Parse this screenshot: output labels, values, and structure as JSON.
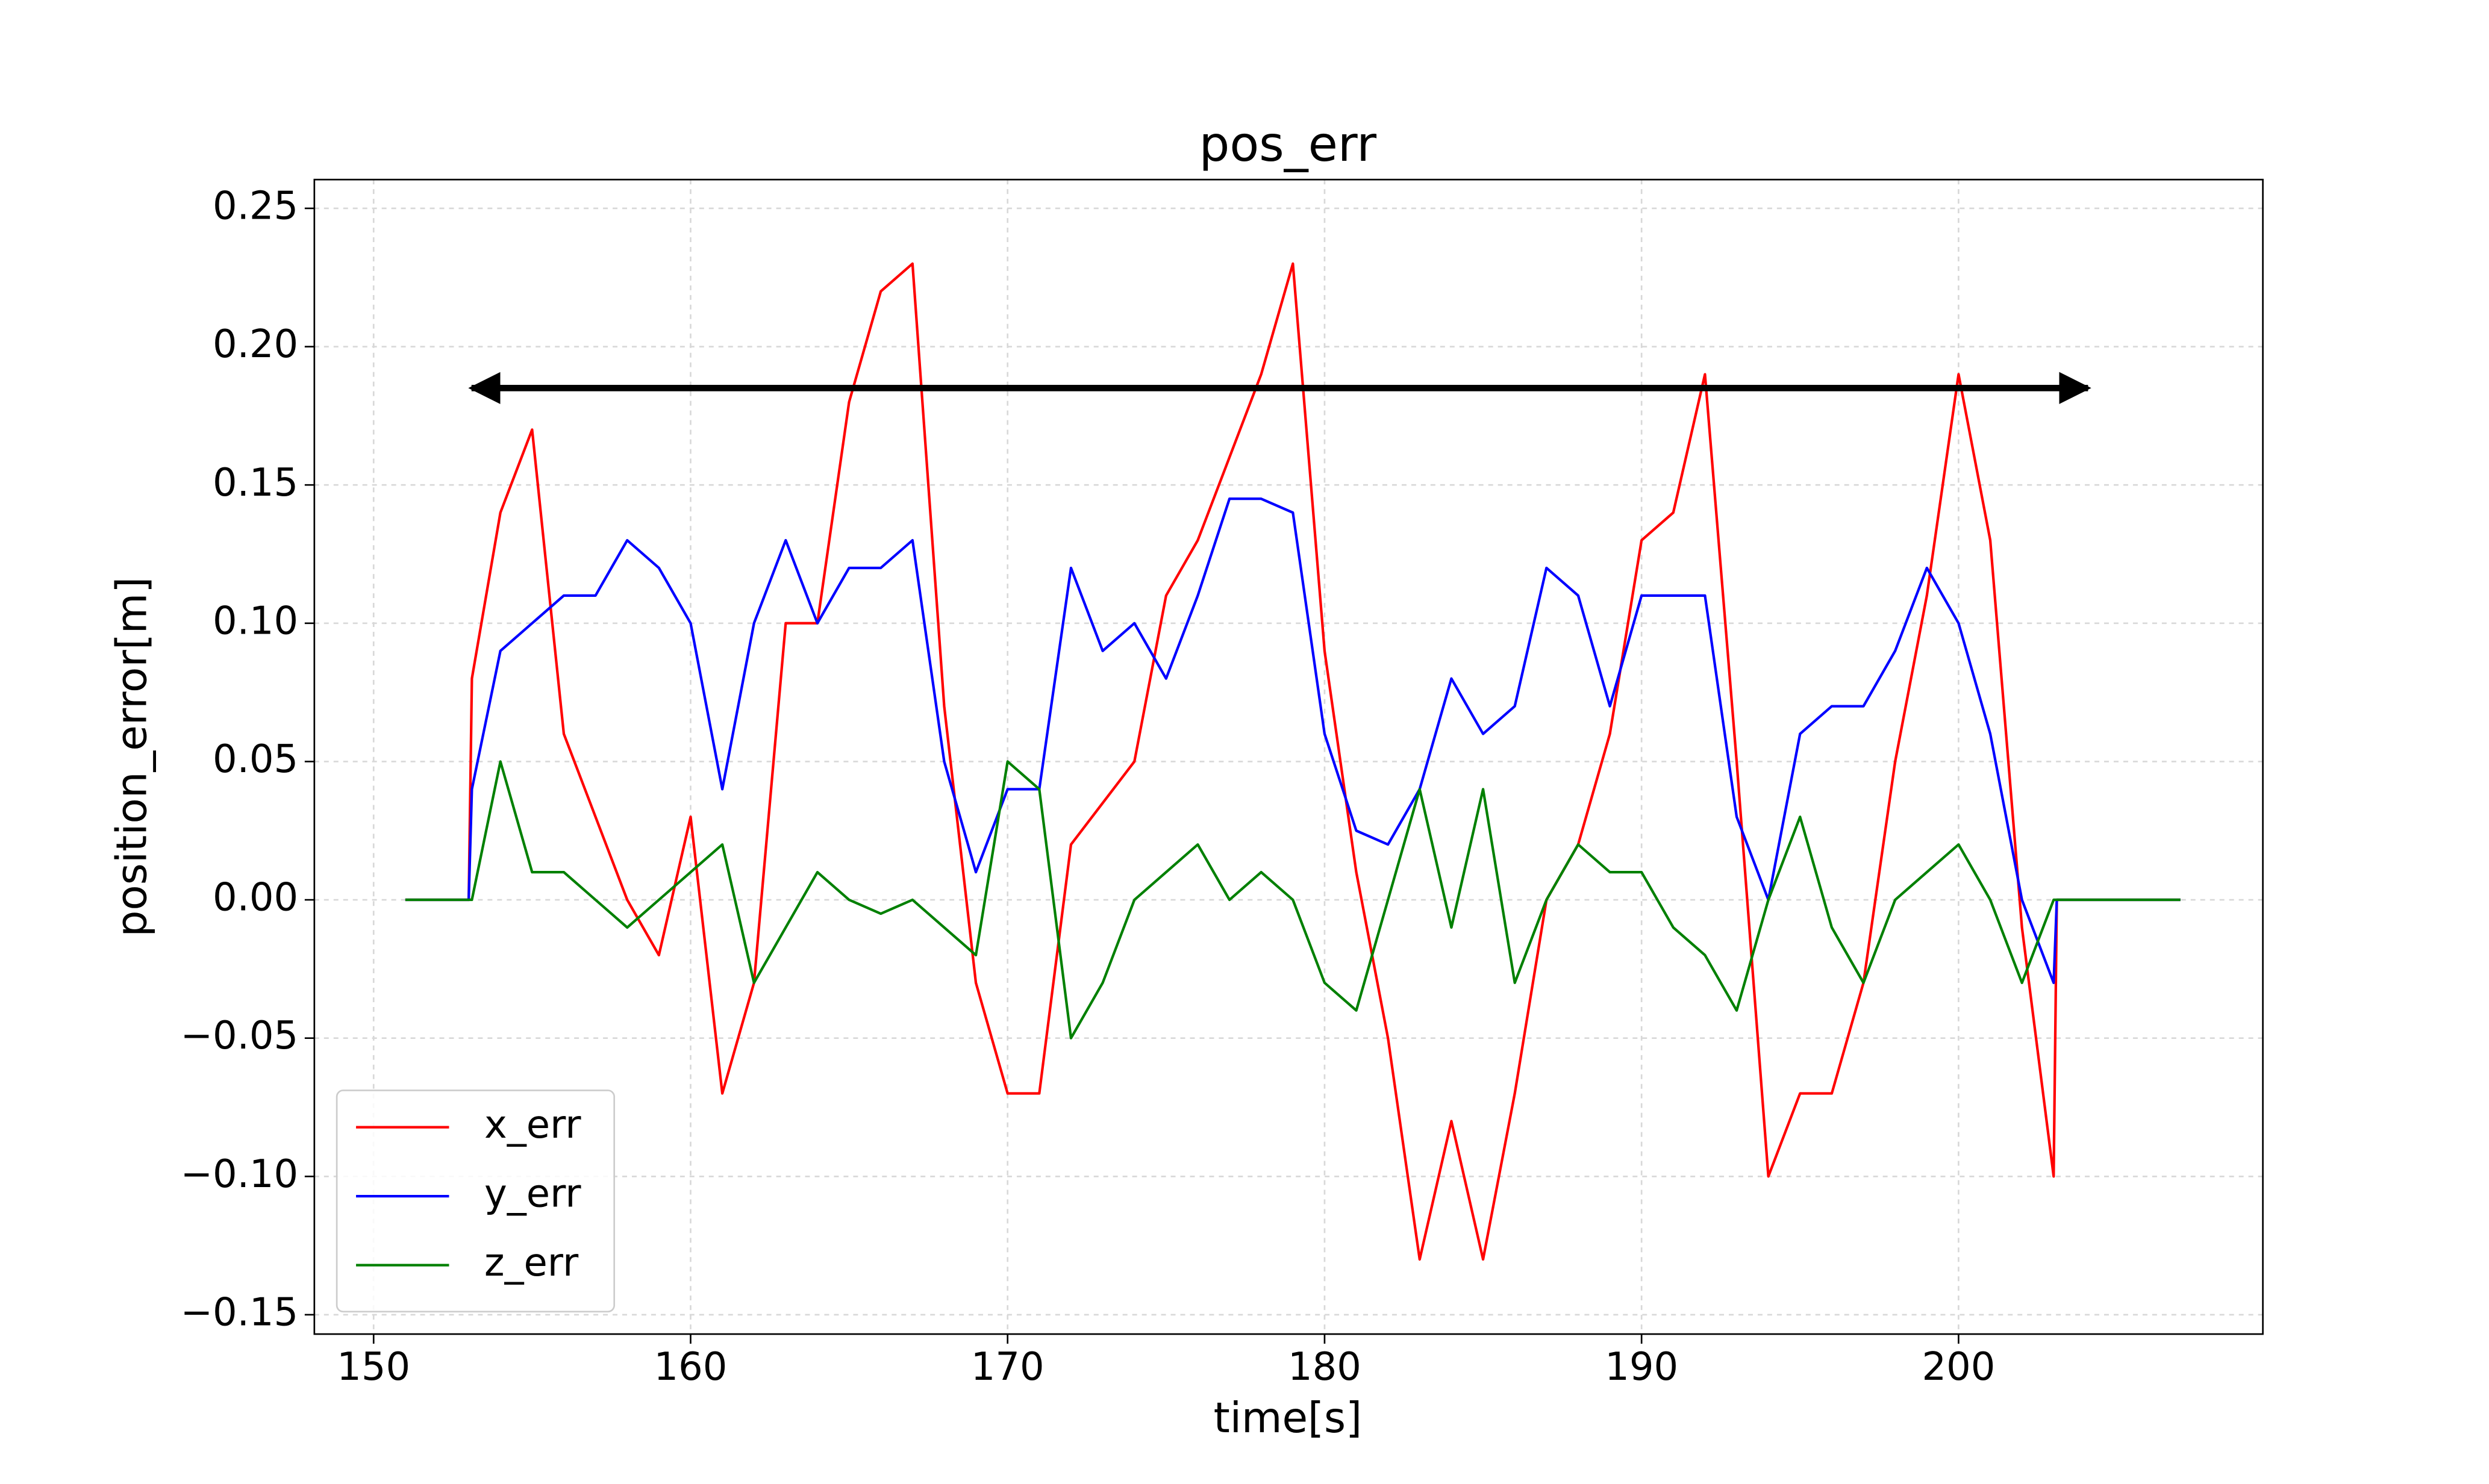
{
  "chart_data": {
    "type": "line",
    "title": "pos_err",
    "x_label": "time[s]",
    "y_label": "position_error[m]",
    "x": [
      151,
      152,
      153,
      153.1,
      154,
      155,
      156,
      157,
      158,
      159,
      160,
      161,
      162,
      163,
      164,
      165,
      166,
      167,
      168,
      169,
      170,
      171,
      172,
      173,
      174,
      175,
      176,
      177,
      178,
      179,
      180,
      181,
      182,
      183,
      184,
      185,
      186,
      187,
      188,
      189,
      190,
      191,
      192,
      193,
      194,
      195,
      196,
      197,
      198,
      199,
      200,
      201,
      202,
      203,
      203.1,
      207
    ],
    "series": [
      {
        "name": "x_err",
        "color": "#ff0000",
        "values": [
          0,
          0,
          0,
          0.08,
          0.14,
          0.17,
          0.06,
          0.03,
          0.0,
          -0.02,
          0.03,
          -0.07,
          -0.03,
          0.1,
          0.1,
          0.18,
          0.22,
          0.23,
          0.07,
          -0.03,
          -0.07,
          -0.07,
          0.02,
          0.035,
          0.05,
          0.11,
          0.13,
          0.16,
          0.19,
          0.23,
          0.09,
          0.01,
          -0.05,
          -0.13,
          -0.08,
          -0.13,
          -0.07,
          0.0,
          0.02,
          0.06,
          0.13,
          0.14,
          0.19,
          0.05,
          -0.1,
          -0.07,
          -0.07,
          -0.03,
          0.05,
          0.11,
          0.19,
          0.13,
          -0.01,
          -0.1,
          0,
          0
        ]
      },
      {
        "name": "y_err",
        "color": "#0000ff",
        "values": [
          0,
          0,
          0,
          0.04,
          0.09,
          0.1,
          0.11,
          0.11,
          0.13,
          0.12,
          0.1,
          0.04,
          0.1,
          0.13,
          0.1,
          0.12,
          0.12,
          0.13,
          0.05,
          0.01,
          0.04,
          0.04,
          0.12,
          0.09,
          0.1,
          0.08,
          0.11,
          0.145,
          0.145,
          0.14,
          0.06,
          0.025,
          0.02,
          0.04,
          0.08,
          0.06,
          0.07,
          0.12,
          0.11,
          0.07,
          0.11,
          0.11,
          0.11,
          0.03,
          0.0,
          0.06,
          0.07,
          0.07,
          0.09,
          0.12,
          0.1,
          0.06,
          0.0,
          -0.03,
          0,
          0
        ]
      },
      {
        "name": "z_err",
        "color": "#008000",
        "values": [
          0,
          0,
          0,
          0.0,
          0.05,
          0.01,
          0.01,
          0.0,
          -0.01,
          0.0,
          0.01,
          0.02,
          -0.03,
          -0.01,
          0.01,
          0.0,
          -0.005,
          0.0,
          -0.01,
          -0.02,
          0.05,
          0.04,
          -0.05,
          -0.03,
          0.0,
          0.01,
          0.02,
          0.0,
          0.01,
          0.0,
          -0.03,
          -0.04,
          0.0,
          0.04,
          -0.01,
          0.04,
          -0.03,
          0.0,
          0.02,
          0.01,
          0.01,
          -0.01,
          -0.02,
          -0.04,
          0.0,
          0.03,
          -0.01,
          -0.03,
          0.0,
          0.01,
          0.02,
          0.0,
          -0.03,
          0.0,
          0,
          0
        ]
      }
    ],
    "xlim": [
      148.13,
      209.6
    ],
    "ylim": [
      -0.157,
      0.2604
    ],
    "xticks": [
      150,
      160,
      170,
      180,
      190,
      200
    ],
    "yticks": [
      {
        "value": -0.15,
        "label": "−0.15"
      },
      {
        "value": -0.1,
        "label": "−0.10"
      },
      {
        "value": -0.05,
        "label": "−0.05"
      },
      {
        "value": 0,
        "label": "0.00"
      },
      {
        "value": 0.05,
        "label": "0.05"
      },
      {
        "value": 0.1,
        "label": "0.10"
      },
      {
        "value": 0.15,
        "label": "0.15"
      },
      {
        "value": 0.2,
        "label": "0.20"
      },
      {
        "value": 0.25,
        "label": "0.25"
      }
    ],
    "grid": true,
    "legend": "lower left"
  }
}
